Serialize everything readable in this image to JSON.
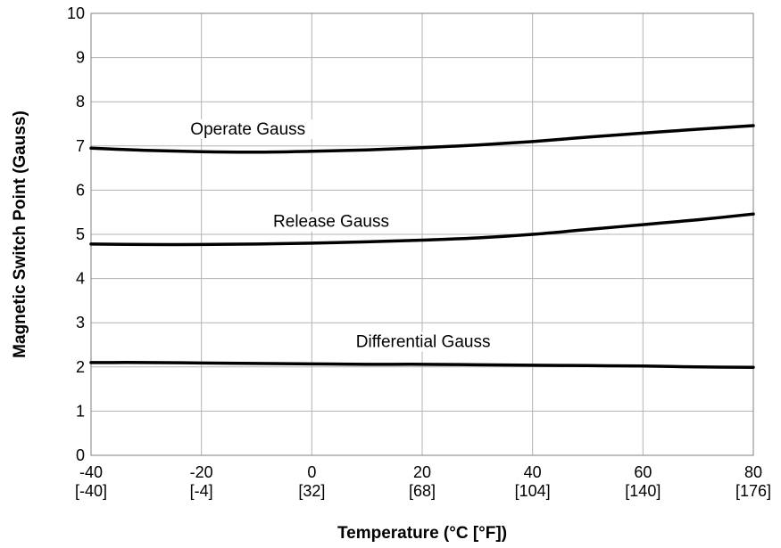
{
  "chart_data": {
    "type": "line",
    "xlabel": "Temperature (°C [°F])",
    "ylabel": "Magnetic Switch Point (Gauss)",
    "xlim": [
      -40,
      80
    ],
    "ylim": [
      0,
      10
    ],
    "grid": true,
    "x_ticks": [
      {
        "value": -40,
        "label": "-40",
        "sublabel": "[-40]"
      },
      {
        "value": -20,
        "label": "-20",
        "sublabel": "[-4]"
      },
      {
        "value": 0,
        "label": "0",
        "sublabel": "[32]"
      },
      {
        "value": 20,
        "label": "20",
        "sublabel": "[68]"
      },
      {
        "value": 40,
        "label": "40",
        "sublabel": "[104]"
      },
      {
        "value": 60,
        "label": "60",
        "sublabel": "[140]"
      },
      {
        "value": 80,
        "label": "80",
        "sublabel": "[176]"
      }
    ],
    "y_ticks": [
      "0",
      "1",
      "2",
      "3",
      "4",
      "5",
      "6",
      "7",
      "8",
      "9",
      "10"
    ],
    "series": [
      {
        "name": "Operate Gauss",
        "x": [
          -40,
          -30,
          -20,
          -10,
          0,
          10,
          20,
          30,
          40,
          50,
          60,
          70,
          80
        ],
        "y": [
          6.95,
          6.9,
          6.87,
          6.86,
          6.88,
          6.91,
          6.96,
          7.02,
          7.1,
          7.2,
          7.29,
          7.38,
          7.46
        ]
      },
      {
        "name": "Release Gauss",
        "x": [
          -40,
          -30,
          -20,
          -10,
          0,
          10,
          20,
          30,
          40,
          50,
          60,
          70,
          80
        ],
        "y": [
          4.78,
          4.77,
          4.77,
          4.78,
          4.8,
          4.83,
          4.87,
          4.92,
          5.0,
          5.11,
          5.22,
          5.33,
          5.46
        ]
      },
      {
        "name": "Differential Gauss",
        "x": [
          -40,
          -30,
          -20,
          -10,
          0,
          10,
          20,
          30,
          40,
          50,
          60,
          70,
          80
        ],
        "y": [
          2.1,
          2.1,
          2.09,
          2.08,
          2.07,
          2.06,
          2.06,
          2.05,
          2.04,
          2.03,
          2.02,
          2.0,
          1.99
        ]
      }
    ]
  }
}
